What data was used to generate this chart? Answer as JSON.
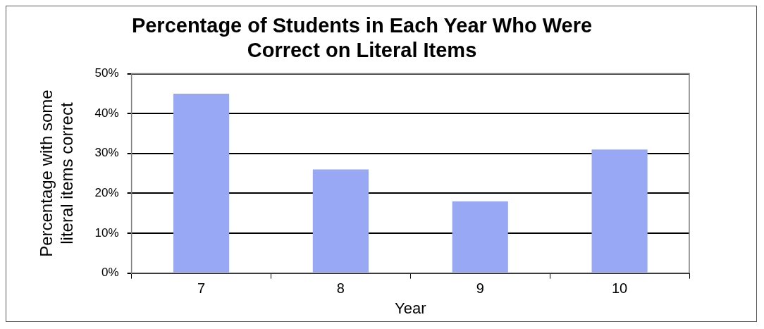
{
  "chart_data": {
    "type": "bar",
    "title": "Percentage of Students in Each Year Who Were\nCorrect on Literal Items",
    "xlabel": "Year",
    "ylabel": "Percentage with some\nliteral items correct",
    "categories": [
      "7",
      "8",
      "9",
      "10"
    ],
    "values": [
      45,
      26,
      18,
      31
    ],
    "color": "#99a8f5",
    "ylim": [
      0,
      50
    ],
    "yticks": [
      {
        "value": 0,
        "label": "0%"
      },
      {
        "value": 10,
        "label": "10%"
      },
      {
        "value": 20,
        "label": "20%"
      },
      {
        "value": 30,
        "label": "30%"
      },
      {
        "value": 40,
        "label": "40%"
      },
      {
        "value": 50,
        "label": "50%"
      }
    ],
    "grid": "y",
    "legend": false
  }
}
